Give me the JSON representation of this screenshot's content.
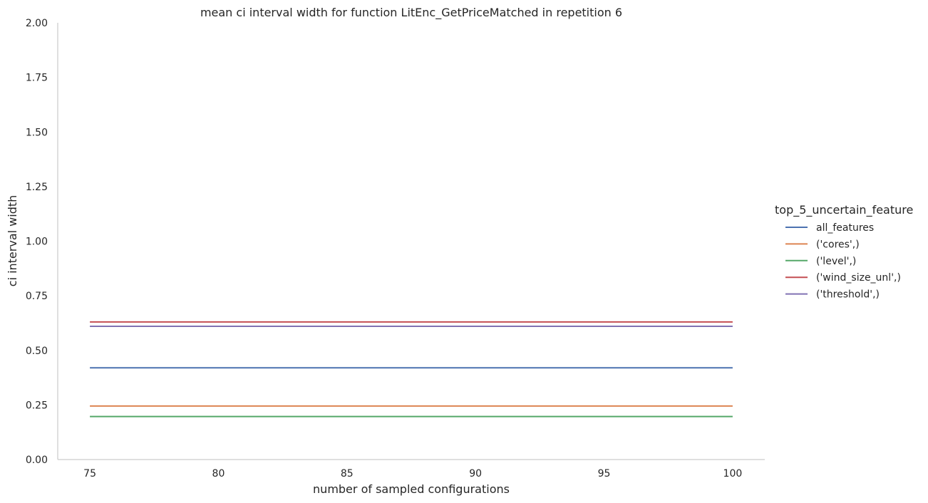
{
  "chart_data": {
    "type": "line",
    "title": "mean ci interval width for function LitEnc_GetPriceMatched in repetition 6",
    "xlabel": "number of sampled configurations",
    "ylabel": "ci interval width",
    "xlim": [
      73.75,
      101.25
    ],
    "ylim": [
      0,
      2
    ],
    "xticks": [
      75,
      80,
      85,
      90,
      95,
      100
    ],
    "xtick_labels": [
      "75",
      "80",
      "85",
      "90",
      "95",
      "100"
    ],
    "yticks": [
      0,
      0.25,
      0.5,
      0.75,
      1.0,
      1.25,
      1.5,
      1.75,
      2.0
    ],
    "ytick_labels": [
      "0.00",
      "0.25",
      "0.50",
      "0.75",
      "1.00",
      "1.25",
      "1.50",
      "1.75",
      "2.00"
    ],
    "grid": false,
    "legend_title": "top_5_uncertain_feature",
    "legend_position": "right",
    "x": [
      75,
      100
    ],
    "series": [
      {
        "name": "all_features",
        "color": "#4c72b0",
        "values": [
          0.42,
          0.42
        ]
      },
      {
        "name": "('cores',)",
        "color": "#dd8452",
        "values": [
          0.245,
          0.245
        ]
      },
      {
        "name": "('level',)",
        "color": "#55a868",
        "values": [
          0.197,
          0.197
        ]
      },
      {
        "name": "('wind_size_unl',)",
        "color": "#c44e52",
        "values": [
          0.63,
          0.63
        ]
      },
      {
        "name": "('threshold',)",
        "color": "#8172b3",
        "values": [
          0.61,
          0.61
        ]
      }
    ]
  }
}
